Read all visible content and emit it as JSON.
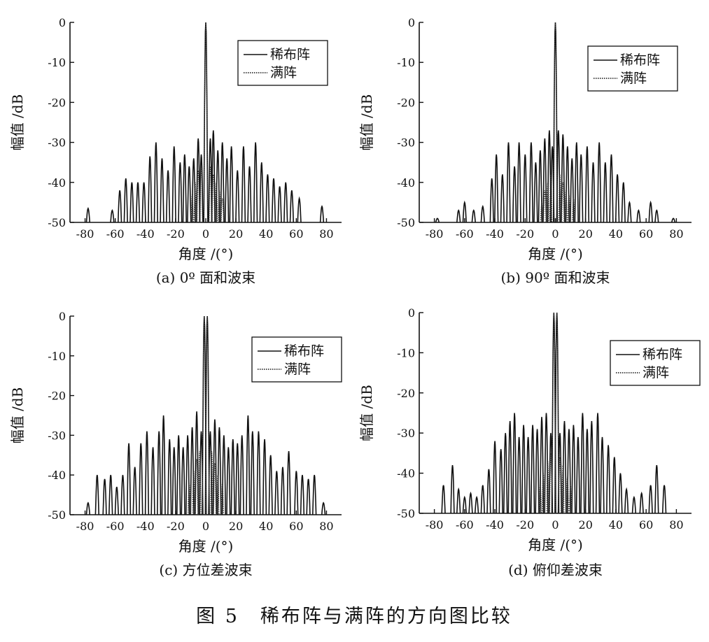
{
  "figure_caption": "图 5　稀布阵与满阵的方向图比较",
  "chart_data": [
    {
      "type": "line",
      "caption": "(a)  0º 面和波束",
      "xlabel": "角度 /(°)",
      "ylabel": "幅值 /dB",
      "xlim": [
        -90,
        90
      ],
      "ylim": [
        -50,
        0
      ],
      "xticks": [
        -80,
        -60,
        -40,
        -20,
        0,
        20,
        40,
        60,
        80
      ],
      "yticks": [
        0,
        -10,
        -20,
        -30,
        -40,
        -50
      ],
      "legend_position": "top-right",
      "series": [
        {
          "name": "稀布阵",
          "style": "solid",
          "color": "#111111",
          "peaks": [
            [
              -78,
              -46.5
            ],
            [
              -62,
              -47
            ],
            [
              -57,
              -42
            ],
            [
              -53,
              -39
            ],
            [
              -49,
              -40
            ],
            [
              -45,
              -40
            ],
            [
              -41,
              -40
            ],
            [
              -37,
              -33.5
            ],
            [
              -33,
              -30
            ],
            [
              -29,
              -34
            ],
            [
              -25,
              -37
            ],
            [
              -21,
              -31
            ],
            [
              -17,
              -35
            ],
            [
              -14,
              -33
            ],
            [
              -11,
              -36
            ],
            [
              -8,
              -34
            ],
            [
              -5,
              -29
            ],
            [
              -3,
              -33
            ],
            [
              0,
              0
            ],
            [
              3,
              -29
            ],
            [
              5,
              -27
            ],
            [
              8,
              -32
            ],
            [
              11,
              -30
            ],
            [
              14,
              -34
            ],
            [
              17,
              -31
            ],
            [
              21,
              -37
            ],
            [
              25,
              -31
            ],
            [
              29,
              -36
            ],
            [
              33,
              -30
            ],
            [
              37,
              -35
            ],
            [
              41,
              -38
            ],
            [
              45,
              -39
            ],
            [
              49,
              -41
            ],
            [
              53,
              -40
            ],
            [
              57,
              -42
            ],
            [
              62,
              -44
            ],
            [
              77,
              -46
            ]
          ]
        },
        {
          "name": "满阵",
          "style": "dotted",
          "color": "#333333",
          "peaks": [
            [
              -9,
              -43
            ],
            [
              -7,
              -40
            ],
            [
              -5,
              -37
            ],
            [
              -3,
              -36
            ],
            [
              0,
              0
            ],
            [
              3,
              -36
            ],
            [
              5,
              -38
            ],
            [
              7,
              -40
            ],
            [
              9,
              -42
            ],
            [
              11,
              -44
            ]
          ]
        }
      ]
    },
    {
      "type": "line",
      "caption": "(b)  90º 面和波束",
      "xlabel": "角度 /(°)",
      "ylabel": "幅值 /dB",
      "xlim": [
        -90,
        90
      ],
      "ylim": [
        -50,
        0
      ],
      "xticks": [
        -80,
        -60,
        -40,
        -20,
        0,
        20,
        40,
        60,
        80
      ],
      "yticks": [
        0,
        -10,
        -20,
        -30,
        -40,
        -50
      ],
      "legend_position": "top-right",
      "series": [
        {
          "name": "稀布阵",
          "style": "solid",
          "color": "#111111",
          "peaks": [
            [
              -78,
              -49
            ],
            [
              -64,
              -47
            ],
            [
              -60,
              -45
            ],
            [
              -54,
              -47
            ],
            [
              -48,
              -46
            ],
            [
              -42,
              -39
            ],
            [
              -39,
              -33
            ],
            [
              -35,
              -38
            ],
            [
              -31,
              -30
            ],
            [
              -27,
              -36
            ],
            [
              -24,
              -30
            ],
            [
              -20,
              -33
            ],
            [
              -16,
              -30
            ],
            [
              -13,
              -35
            ],
            [
              -10,
              -32
            ],
            [
              -7,
              -29
            ],
            [
              -4,
              -27
            ],
            [
              -2,
              -31
            ],
            [
              0,
              0
            ],
            [
              2,
              -27
            ],
            [
              5,
              -28
            ],
            [
              8,
              -31
            ],
            [
              11,
              -34
            ],
            [
              14,
              -30
            ],
            [
              17,
              -33
            ],
            [
              21,
              -31
            ],
            [
              25,
              -35
            ],
            [
              29,
              -30
            ],
            [
              33,
              -35
            ],
            [
              37,
              -33
            ],
            [
              41,
              -38
            ],
            [
              45,
              -40
            ],
            [
              49,
              -45
            ],
            [
              55,
              -47
            ],
            [
              63,
              -45
            ],
            [
              67,
              -47
            ],
            [
              78,
              -49
            ]
          ]
        },
        {
          "name": "满阵",
          "style": "dotted",
          "color": "#333333",
          "peaks": [
            [
              -9,
              -45
            ],
            [
              -7,
              -42
            ],
            [
              -5,
              -40
            ],
            [
              -3,
              -38
            ],
            [
              0,
              0
            ],
            [
              3,
              -38
            ],
            [
              5,
              -40
            ],
            [
              7,
              -42
            ],
            [
              9,
              -43
            ],
            [
              12,
              -44
            ]
          ]
        }
      ]
    },
    {
      "type": "line",
      "caption": "(c)  方位差波束",
      "xlabel": "角度 /(°)",
      "ylabel": "幅值 /dB",
      "xlim": [
        -90,
        90
      ],
      "ylim": [
        -50,
        0
      ],
      "xticks": [
        -80,
        -60,
        -40,
        -20,
        0,
        20,
        40,
        60,
        80
      ],
      "yticks": [
        0,
        -10,
        -20,
        -30,
        -40,
        -50
      ],
      "legend_position": "top-right",
      "series": [
        {
          "name": "稀布阵",
          "style": "solid",
          "color": "#111111",
          "peaks": [
            [
              -78,
              -47
            ],
            [
              -72,
              -40
            ],
            [
              -67,
              -41
            ],
            [
              -63,
              -40
            ],
            [
              -59,
              -43
            ],
            [
              -55,
              -40
            ],
            [
              -51,
              -32
            ],
            [
              -47,
              -38
            ],
            [
              -43,
              -32
            ],
            [
              -39,
              -29
            ],
            [
              -35,
              -33
            ],
            [
              -31,
              -29
            ],
            [
              -28,
              -25
            ],
            [
              -24,
              -31
            ],
            [
              -21,
              -33
            ],
            [
              -18,
              -30
            ],
            [
              -15,
              -33
            ],
            [
              -12,
              -30
            ],
            [
              -9,
              -28
            ],
            [
              -6,
              -24
            ],
            [
              -3,
              -29
            ],
            [
              -1,
              0
            ],
            [
              1,
              0
            ],
            [
              3,
              -29
            ],
            [
              6,
              -26
            ],
            [
              9,
              -28
            ],
            [
              12,
              -30
            ],
            [
              15,
              -33
            ],
            [
              18,
              -31
            ],
            [
              21,
              -32
            ],
            [
              24,
              -30
            ],
            [
              28,
              -25
            ],
            [
              31,
              -29
            ],
            [
              35,
              -29
            ],
            [
              39,
              -31
            ],
            [
              43,
              -35
            ],
            [
              47,
              -39
            ],
            [
              51,
              -38
            ],
            [
              55,
              -34
            ],
            [
              60,
              -39
            ],
            [
              64,
              -40
            ],
            [
              68,
              -41
            ],
            [
              72,
              -40
            ],
            [
              78,
              -47
            ]
          ]
        },
        {
          "name": "满阵",
          "style": "dotted",
          "color": "#333333",
          "peaks": [
            [
              -11,
              -42
            ],
            [
              -8,
              -39
            ],
            [
              -6,
              -36
            ],
            [
              -4,
              -34
            ],
            [
              -1,
              0
            ],
            [
              1,
              0
            ],
            [
              4,
              -34
            ],
            [
              6,
              -37
            ],
            [
              8,
              -40
            ],
            [
              11,
              -42
            ]
          ]
        }
      ]
    },
    {
      "type": "line",
      "caption": "(d)  俯仰差波束",
      "xlabel": "角度 /(°)",
      "ylabel": "幅值 /dB",
      "xlim": [
        -90,
        90
      ],
      "ylim": [
        -50,
        0
      ],
      "xticks": [
        -80,
        -60,
        -40,
        -20,
        0,
        20,
        40,
        60,
        80
      ],
      "yticks": [
        0,
        -10,
        -20,
        -30,
        -40,
        -50
      ],
      "legend_position": "top-right",
      "series": [
        {
          "name": "稀布阵",
          "style": "solid",
          "color": "#111111",
          "peaks": [
            [
              -74,
              -43
            ],
            [
              -68,
              -38
            ],
            [
              -64,
              -44
            ],
            [
              -60,
              -46
            ],
            [
              -56,
              -45
            ],
            [
              -52,
              -46
            ],
            [
              -48,
              -43
            ],
            [
              -44,
              -39
            ],
            [
              -40,
              -32
            ],
            [
              -36,
              -34
            ],
            [
              -33,
              -30
            ],
            [
              -30,
              -27
            ],
            [
              -27,
              -25
            ],
            [
              -24,
              -31
            ],
            [
              -21,
              -28
            ],
            [
              -18,
              -31
            ],
            [
              -15,
              -28
            ],
            [
              -12,
              -29
            ],
            [
              -9,
              -26
            ],
            [
              -6,
              -25
            ],
            [
              -3,
              -30
            ],
            [
              -1,
              0
            ],
            [
              1,
              0
            ],
            [
              3,
              -30
            ],
            [
              6,
              -27
            ],
            [
              9,
              -29
            ],
            [
              12,
              -28
            ],
            [
              15,
              -31
            ],
            [
              18,
              -25
            ],
            [
              21,
              -29
            ],
            [
              24,
              -27
            ],
            [
              28,
              -25
            ],
            [
              31,
              -31
            ],
            [
              35,
              -33
            ],
            [
              39,
              -36
            ],
            [
              43,
              -40
            ],
            [
              47,
              -44
            ],
            [
              52,
              -46
            ],
            [
              57,
              -45
            ],
            [
              63,
              -43
            ],
            [
              67,
              -38
            ],
            [
              72,
              -43
            ]
          ]
        },
        {
          "name": "满阵",
          "style": "dotted",
          "color": "#333333",
          "peaks": [
            [
              -10,
              -43
            ],
            [
              -8,
              -40
            ],
            [
              -5,
              -37
            ],
            [
              -3,
              -35
            ],
            [
              -1,
              0
            ],
            [
              1,
              0
            ],
            [
              3,
              -36
            ],
            [
              5,
              -38
            ],
            [
              8,
              -41
            ],
            [
              10,
              -43
            ]
          ]
        }
      ]
    }
  ]
}
